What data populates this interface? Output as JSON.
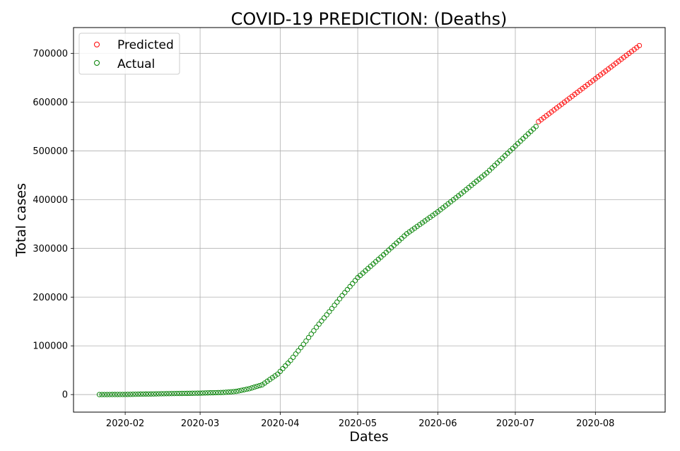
{
  "chart_data": {
    "type": "scatter",
    "title": "COVID-19 PREDICTION: (Deaths)",
    "xlabel": "Dates",
    "ylabel": "Total cases",
    "x_ticks": [
      "2020-02",
      "2020-03",
      "2020-04",
      "2020-05",
      "2020-06",
      "2020-07",
      "2020-08"
    ],
    "x_tick_dates": [
      "2020-02-01",
      "2020-03-01",
      "2020-04-01",
      "2020-05-01",
      "2020-06-01",
      "2020-07-01",
      "2020-08-01"
    ],
    "y_ticks": [
      0,
      100000,
      200000,
      300000,
      400000,
      500000,
      600000,
      700000
    ],
    "xlim": [
      "2020-01-12",
      "2020-08-28"
    ],
    "ylim": [
      -36000,
      753000
    ],
    "grid": true,
    "legend_position": "top-left",
    "marker": "open-circle",
    "series": [
      {
        "name": "Predicted",
        "color": "#ff0000",
        "x_start": "2020-07-10",
        "x_end": "2020-08-18",
        "step_days": 1,
        "anchors": [
          [
            "2020-07-10",
            560000
          ],
          [
            "2020-08-18",
            716000
          ]
        ]
      },
      {
        "name": "Actual",
        "color": "#008000",
        "x_start": "2020-01-22",
        "x_end": "2020-07-09",
        "step_days": 1,
        "anchors": [
          [
            "2020-01-22",
            17
          ],
          [
            "2020-02-01",
            259
          ],
          [
            "2020-02-15",
            1666
          ],
          [
            "2020-03-01",
            3000
          ],
          [
            "2020-03-10",
            4300
          ],
          [
            "2020-03-15",
            6500
          ],
          [
            "2020-03-20",
            12000
          ],
          [
            "2020-03-25",
            20000
          ],
          [
            "2020-03-31",
            42000
          ],
          [
            "2020-04-05",
            70000
          ],
          [
            "2020-04-10",
            103000
          ],
          [
            "2020-04-15",
            138000
          ],
          [
            "2020-04-20",
            170000
          ],
          [
            "2020-04-25",
            203000
          ],
          [
            "2020-05-01",
            240000
          ],
          [
            "2020-05-10",
            282000
          ],
          [
            "2020-05-20",
            330000
          ],
          [
            "2020-06-01",
            375000
          ],
          [
            "2020-06-10",
            412000
          ],
          [
            "2020-06-20",
            455000
          ],
          [
            "2020-06-30",
            505000
          ],
          [
            "2020-07-09",
            550000
          ]
        ]
      }
    ]
  }
}
